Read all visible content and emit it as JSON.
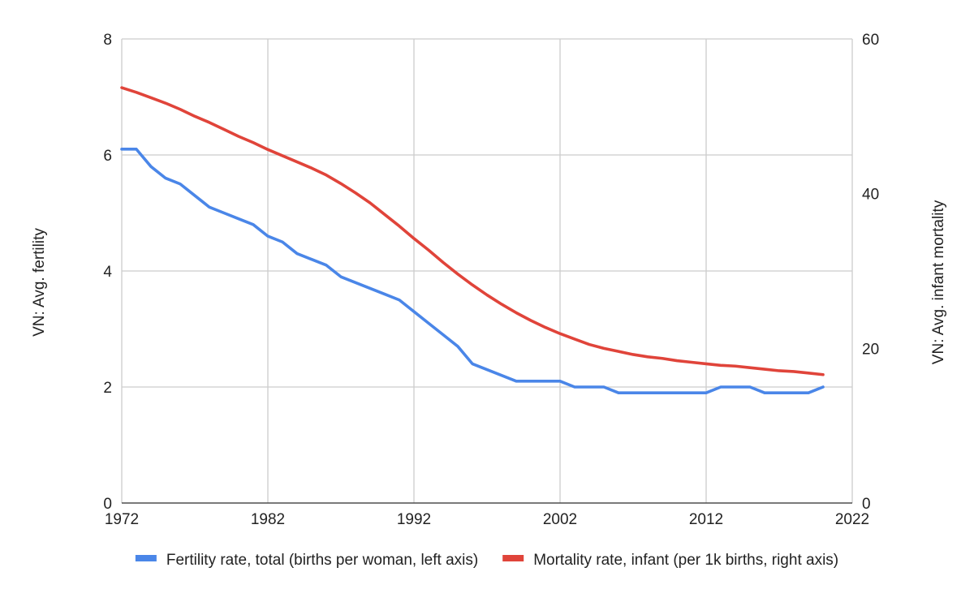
{
  "chart_data": {
    "type": "line",
    "title": "",
    "xlabel": "",
    "ylabel_left": "VN: Avg. fertility",
    "ylabel_right": "VN: Avg. infant mortality",
    "xlim": [
      1972,
      2022
    ],
    "ylim_left": [
      0,
      8
    ],
    "ylim_right": [
      0,
      60
    ],
    "xticks": [
      "1972",
      "1982",
      "1992",
      "2002",
      "2012",
      "2022"
    ],
    "yticks_left": [
      "0",
      "2",
      "4",
      "6",
      "8"
    ],
    "yticks_right": [
      "0",
      "20",
      "40",
      "60"
    ],
    "grid": true,
    "legend_position": "bottom",
    "series": [
      {
        "name": "Fertility rate, total (births per woman, left axis)",
        "axis": "left",
        "color": "#4a86e8",
        "x": [
          1972,
          1973,
          1974,
          1975,
          1976,
          1977,
          1978,
          1979,
          1980,
          1981,
          1982,
          1983,
          1984,
          1985,
          1986,
          1987,
          1988,
          1989,
          1990,
          1991,
          1992,
          1993,
          1994,
          1995,
          1996,
          1997,
          1998,
          1999,
          2000,
          2001,
          2002,
          2003,
          2004,
          2005,
          2006,
          2007,
          2008,
          2009,
          2010,
          2011,
          2012,
          2013,
          2014,
          2015,
          2016,
          2017,
          2018,
          2019,
          2020
        ],
        "y": [
          6.1,
          6.1,
          5.8,
          5.6,
          5.5,
          5.3,
          5.1,
          5.0,
          4.9,
          4.8,
          4.6,
          4.5,
          4.3,
          4.2,
          4.1,
          3.9,
          3.8,
          3.7,
          3.6,
          3.5,
          3.3,
          3.1,
          2.9,
          2.7,
          2.4,
          2.3,
          2.2,
          2.1,
          2.1,
          2.1,
          2.1,
          2.0,
          2.0,
          2.0,
          1.9,
          1.9,
          1.9,
          1.9,
          1.9,
          1.9,
          1.9,
          2.0,
          2.0,
          2.0,
          1.9,
          1.9,
          1.9,
          1.9,
          2.0
        ]
      },
      {
        "name": "Mortality rate, infant (per 1k births, right axis)",
        "axis": "right",
        "color": "#e0443a",
        "x": [
          1972,
          1973,
          1974,
          1975,
          1976,
          1977,
          1978,
          1979,
          1980,
          1981,
          1982,
          1983,
          1984,
          1985,
          1986,
          1987,
          1988,
          1989,
          1990,
          1991,
          1992,
          1993,
          1994,
          1995,
          1996,
          1997,
          1998,
          1999,
          2000,
          2001,
          2002,
          2003,
          2004,
          2005,
          2006,
          2007,
          2008,
          2009,
          2010,
          2011,
          2012,
          2013,
          2014,
          2015,
          2016,
          2017,
          2018,
          2019,
          2020
        ],
        "y": [
          53.7,
          53.1,
          52.4,
          51.7,
          50.9,
          50.0,
          49.2,
          48.3,
          47.4,
          46.6,
          45.7,
          44.9,
          44.1,
          43.3,
          42.4,
          41.3,
          40.1,
          38.8,
          37.3,
          35.8,
          34.2,
          32.7,
          31.1,
          29.6,
          28.2,
          26.9,
          25.7,
          24.6,
          23.6,
          22.7,
          21.9,
          21.2,
          20.5,
          20.0,
          19.6,
          19.2,
          18.9,
          18.7,
          18.4,
          18.2,
          18.0,
          17.8,
          17.7,
          17.5,
          17.3,
          17.1,
          17.0,
          16.8,
          16.6
        ]
      }
    ]
  }
}
